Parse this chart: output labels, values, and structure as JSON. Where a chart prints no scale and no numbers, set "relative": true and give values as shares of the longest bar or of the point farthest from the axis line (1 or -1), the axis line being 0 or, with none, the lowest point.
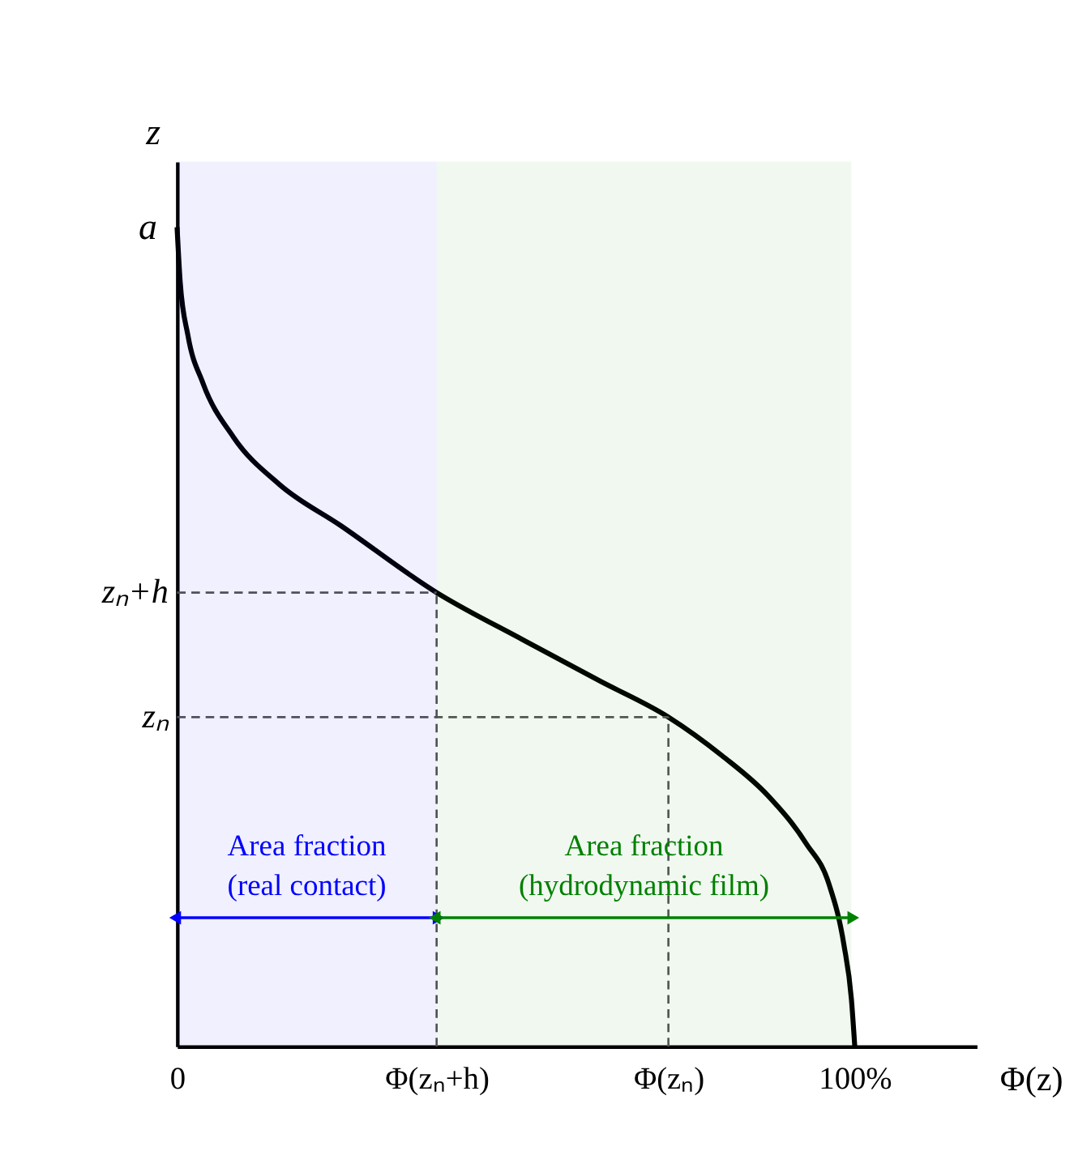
{
  "chart_data": {
    "type": "line",
    "relative": true,
    "xlabel": "Φ(z)",
    "ylabel": "z",
    "grid": false,
    "x": [
      0,
      0.45,
      1.6,
      3.8,
      8.3,
      15.1,
      24.1,
      38.3,
      51.1,
      62.4,
      72.5,
      80.4,
      87.2,
      92.8,
      96.2,
      98.4,
      99.5,
      100
    ],
    "series": [
      {
        "color": "#000000",
        "values": [
          1,
          0.934,
          0.868,
          0.81,
          0.744,
          0.686,
          0.636,
          0.554,
          0.496,
          0.446,
          0.402,
          0.355,
          0.306,
          0.248,
          0.198,
          0.124,
          0.058,
          0
        ]
      }
    ],
    "xlim": [
      0,
      118
    ],
    "xticks": [
      0,
      {
        "value": 38.3,
        "label": "Φ(zₙ+h)"
      },
      {
        "value": 72.5,
        "label": "Φ(zₙ)"
      },
      {
        "value": 100,
        "label": "100%"
      }
    ],
    "ref_lines": [
      {
        "axis": "y",
        "value": 0.554,
        "label": "zₙ+h",
        "color": "#555555",
        "line_style": "dashed"
      },
      {
        "axis": "y",
        "value": 0.402,
        "label": "zₙ",
        "color": "#555555",
        "line_style": "dashed"
      },
      {
        "axis": "x",
        "value": 38.3,
        "color": "#555555",
        "line_style": "dashed"
      },
      {
        "axis": "x",
        "value": 72.5,
        "color": "#555555",
        "line_style": "dashed"
      }
    ],
    "bands": [
      {
        "axis": "x",
        "from": 0,
        "to": 38.3,
        "label": "Area fraction\n(real contact)",
        "color": "#0000ff"
      },
      {
        "axis": "x",
        "from": 38.3,
        "to": 99.5,
        "label": "Area fraction\n(hydrodynamic film)",
        "color": "#008000"
      }
    ],
    "annotations": [
      {
        "text": "a",
        "x": 0,
        "y": 1
      }
    ]
  }
}
